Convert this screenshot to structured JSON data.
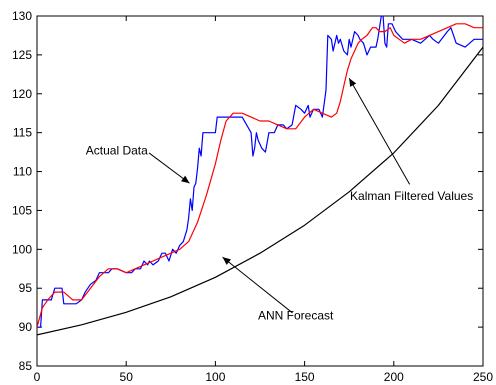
{
  "chart_data": {
    "type": "line",
    "title": "",
    "xlabel": "",
    "ylabel": "",
    "xlim": [
      0,
      250
    ],
    "ylim": [
      85,
      130
    ],
    "xticks": [
      0,
      50,
      100,
      150,
      200,
      250
    ],
    "yticks": [
      85,
      90,
      95,
      100,
      105,
      110,
      115,
      120,
      125,
      130
    ],
    "grid": false,
    "series": [
      {
        "color": "#0000ff",
        "x": [
          0,
          2,
          3,
          5,
          8,
          10,
          14,
          15,
          20,
          22,
          25,
          27,
          30,
          33,
          35,
          40,
          42,
          45,
          50,
          53,
          55,
          58,
          60,
          62,
          63,
          65,
          68,
          70,
          72,
          74,
          76,
          78,
          80,
          82,
          84,
          85,
          86,
          87,
          88,
          89,
          90,
          91,
          92,
          93,
          95,
          97,
          100,
          101,
          103,
          107,
          110,
          112,
          115,
          120,
          121,
          122,
          123,
          124,
          126,
          128,
          130,
          131,
          132,
          133,
          135,
          138,
          140,
          143,
          145,
          148,
          150,
          152,
          153,
          155,
          158,
          160,
          162,
          163,
          165,
          166,
          167,
          168,
          169,
          170,
          172,
          174,
          175,
          176,
          178,
          180,
          181,
          183,
          185,
          187,
          190,
          191,
          192,
          193,
          194,
          195,
          196,
          197,
          199,
          201,
          205,
          210,
          215,
          220,
          222,
          225,
          230,
          232,
          235,
          240,
          245,
          250
        ],
        "values": [
          90,
          90,
          93.5,
          93.5,
          93.5,
          95,
          95,
          93,
          93,
          93,
          93.5,
          94.5,
          95.5,
          96,
          97,
          97,
          97.5,
          97.5,
          97,
          97,
          97.5,
          97.5,
          98.5,
          98,
          98.5,
          98,
          98.5,
          99.5,
          99.5,
          98.5,
          100,
          99.5,
          100.5,
          101,
          102.5,
          104,
          106.5,
          105,
          108,
          108.5,
          110.5,
          113,
          112,
          115,
          115,
          115,
          115,
          117,
          117,
          117,
          117,
          117,
          117,
          115,
          112,
          113,
          115,
          114,
          113,
          112.5,
          115,
          115,
          115,
          115,
          116,
          116,
          115.5,
          116,
          118.5,
          118,
          117.5,
          118.5,
          117,
          118,
          118,
          117,
          120.5,
          127.5,
          127,
          125.5,
          126.5,
          127.5,
          126.5,
          127,
          125.5,
          125,
          127,
          126,
          128,
          127.5,
          127,
          126.5,
          125,
          126,
          126,
          127,
          128.5,
          130,
          130,
          126.5,
          126,
          129,
          129,
          128,
          127,
          127,
          126.5,
          127.5,
          127,
          126.5,
          128,
          128.5,
          126.5,
          126,
          127,
          127
        ]
      },
      {
        "color": "#ff0000",
        "x": [
          0,
          3,
          6,
          10,
          15,
          20,
          25,
          30,
          35,
          40,
          45,
          50,
          55,
          60,
          65,
          70,
          75,
          80,
          85,
          90,
          95,
          100,
          103,
          106,
          110,
          115,
          120,
          125,
          130,
          135,
          140,
          145,
          150,
          155,
          160,
          165,
          168,
          170,
          172,
          174,
          176,
          178,
          180,
          182,
          185,
          188,
          190,
          192,
          195,
          198,
          200,
          203,
          206,
          210,
          215,
          220,
          225,
          230,
          235,
          240,
          245,
          250
        ],
        "values": [
          90,
          92.5,
          93.5,
          94.5,
          94.5,
          93.5,
          93.5,
          95,
          96.5,
          97.5,
          97.5,
          97,
          97.5,
          98,
          98.5,
          99,
          99.5,
          100,
          101,
          103.5,
          107,
          111,
          114,
          116.5,
          117.5,
          117.5,
          117,
          116.5,
          116.5,
          116,
          115.5,
          115.5,
          117,
          118,
          117.5,
          117,
          117.5,
          119,
          121,
          123,
          124.5,
          125.5,
          126.5,
          127,
          127.5,
          128.5,
          128.5,
          128,
          128,
          128.5,
          127.5,
          127,
          126.5,
          127,
          127,
          127.5,
          128,
          128.5,
          129,
          129,
          128.5,
          128.5
        ]
      },
      {
        "color": "#000000",
        "x": [
          0,
          25,
          50,
          75,
          100,
          125,
          150,
          175,
          200,
          225,
          250
        ],
        "values": [
          89,
          90.3,
          91.9,
          93.9,
          96.4,
          99.5,
          103.1,
          107.4,
          112.4,
          118.5,
          126
        ]
      }
    ],
    "annotations": [
      {
        "text": "Actual Data",
        "tx": 61,
        "ty": 112.7,
        "ax": 85.5,
        "ay": 108.5
      },
      {
        "text": "Kalman Filtered Values",
        "tx": 210,
        "ty": 107.9,
        "ax": 175,
        "ay": 122
      },
      {
        "text": "ANN Forecast",
        "tx": 145,
        "ty": 91.5,
        "ax": 104,
        "ay": 99
      }
    ]
  }
}
